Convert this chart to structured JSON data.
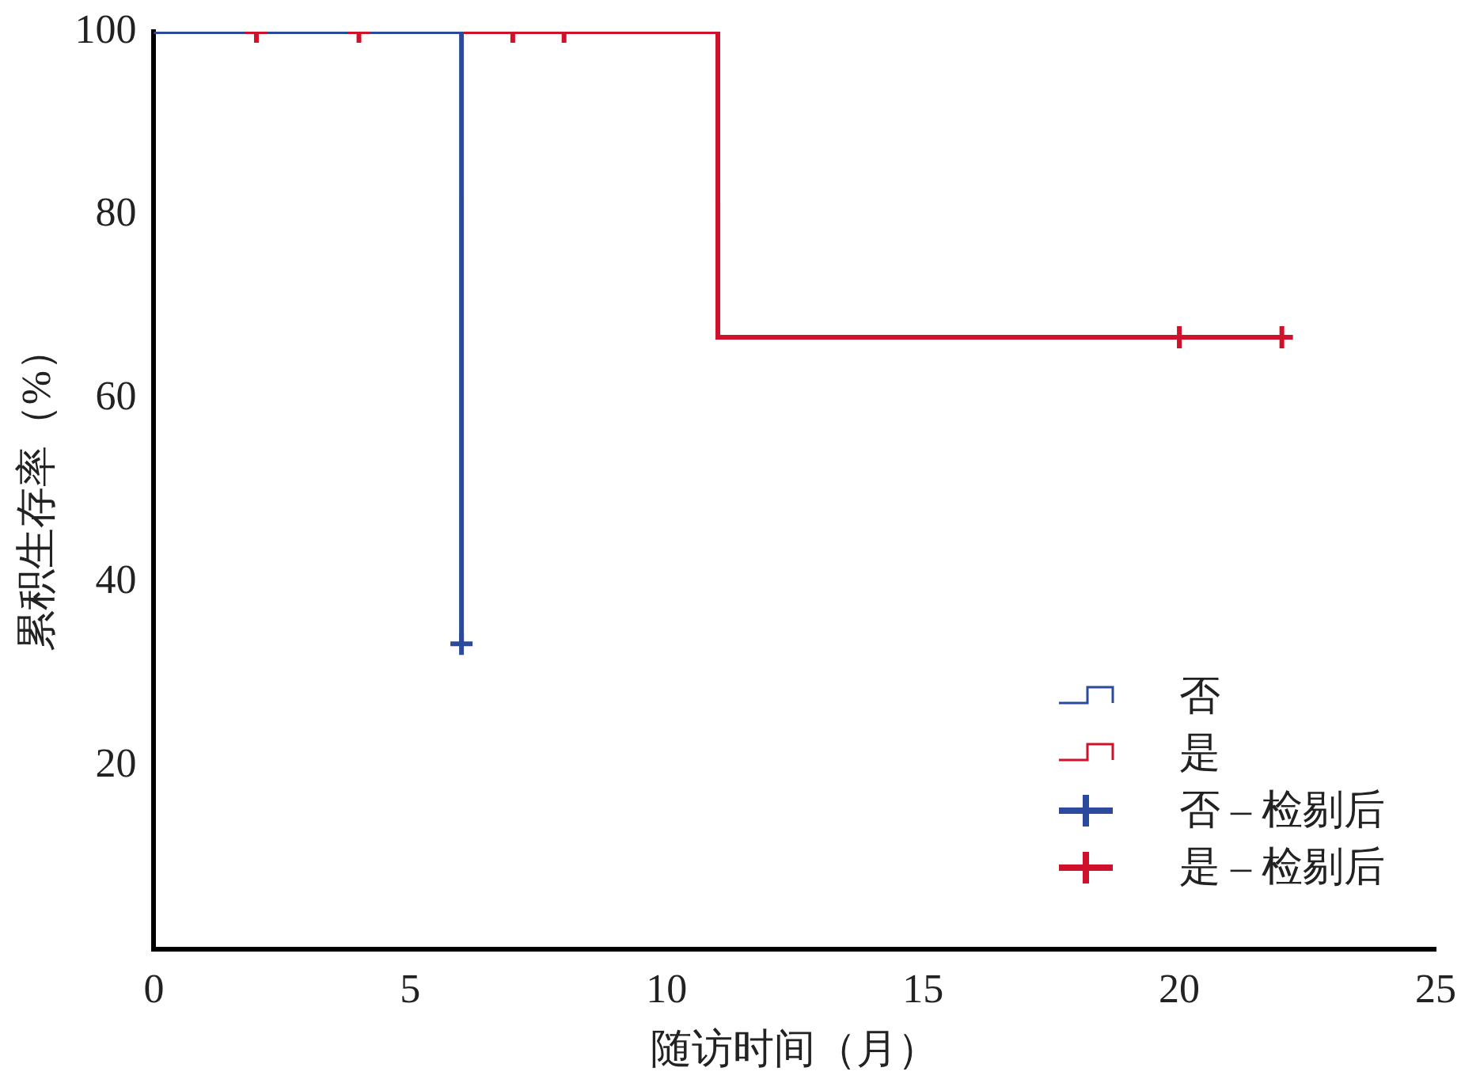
{
  "chart_data": {
    "type": "step",
    "xlabel": "随访时间（月）",
    "ylabel": "累积生存率（%）",
    "xlim": [
      0,
      25
    ],
    "xticks": [
      0,
      5,
      10,
      15,
      20,
      25
    ],
    "ylim": [
      0,
      100
    ],
    "yticks": [
      20,
      40,
      60,
      80,
      100
    ],
    "grid": false,
    "legend": "bottom right",
    "series": [
      {
        "name": "否",
        "color": "#2b4a9b",
        "x": [
          0,
          6
        ],
        "values": [
          100,
          33.3
        ]
      },
      {
        "name": "是",
        "color": "#d0112b",
        "x": [
          0,
          11,
          22
        ],
        "values": [
          100,
          66.7,
          66.7
        ]
      },
      {
        "name": "否 – 检剔后",
        "color": "#2b4a9b",
        "type": "scatter",
        "marker": "cross",
        "x": [
          6
        ],
        "values": [
          33.3
        ]
      },
      {
        "name": "是 – 检剔后",
        "color": "#d0112b",
        "type": "scatter",
        "marker": "cross",
        "x": [
          2,
          4,
          7,
          8,
          20,
          22
        ],
        "values": [
          100,
          100,
          100,
          100,
          66.7,
          66.7
        ]
      }
    ]
  }
}
